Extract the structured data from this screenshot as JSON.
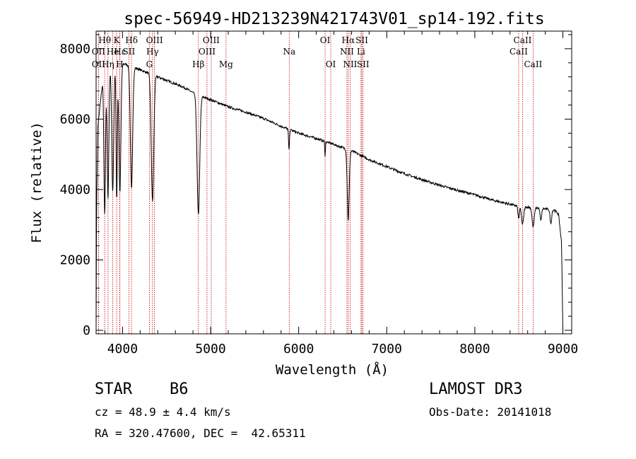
{
  "chart_data": {
    "type": "line",
    "title": "spec-56949-HD213239N421743V01_sp14-192.fits",
    "xlabel": "Wavelength (Å)",
    "ylabel": "Flux (relative)",
    "xlim": [
      3700,
      9100
    ],
    "ylim": [
      -100,
      8500
    ],
    "xticks": [
      4000,
      5000,
      6000,
      7000,
      8000,
      9000
    ],
    "yticks": [
      0,
      2000,
      4000,
      6000,
      8000
    ],
    "series": [
      {
        "name": "spectrum",
        "continuum": [
          [
            3700,
            0
          ],
          [
            3705,
            3500
          ],
          [
            3720,
            5800
          ],
          [
            3780,
            7200
          ],
          [
            3850,
            7500
          ],
          [
            3950,
            7600
          ],
          [
            4050,
            7550
          ],
          [
            4150,
            7450
          ],
          [
            4250,
            7350
          ],
          [
            4400,
            7200
          ],
          [
            4550,
            7050
          ],
          [
            4700,
            6900
          ],
          [
            4800,
            6750
          ],
          [
            4900,
            6650
          ],
          [
            5000,
            6550
          ],
          [
            5200,
            6350
          ],
          [
            5400,
            6200
          ],
          [
            5600,
            6020
          ],
          [
            5800,
            5800
          ],
          [
            6000,
            5600
          ],
          [
            6200,
            5450
          ],
          [
            6400,
            5280
          ],
          [
            6600,
            5100
          ],
          [
            6800,
            4850
          ],
          [
            7000,
            4650
          ],
          [
            7200,
            4450
          ],
          [
            7400,
            4280
          ],
          [
            7600,
            4120
          ],
          [
            7800,
            3980
          ],
          [
            8000,
            3850
          ],
          [
            8200,
            3700
          ],
          [
            8400,
            3580
          ],
          [
            8500,
            3520
          ],
          [
            8700,
            3480
          ],
          [
            8900,
            3420
          ],
          [
            8950,
            3300
          ],
          [
            8985,
            2500
          ],
          [
            9000,
            0
          ]
        ],
        "absorption": [
          [
            3797,
            4000,
            9
          ],
          [
            3835,
            3700,
            10
          ],
          [
            3889,
            3600,
            11
          ],
          [
            3934,
            3900,
            7
          ],
          [
            3970,
            3700,
            11
          ],
          [
            4102,
            3500,
            13
          ],
          [
            4340,
            3600,
            14
          ],
          [
            4861,
            3400,
            15
          ],
          [
            5890,
            600,
            5
          ],
          [
            6300,
            400,
            4
          ],
          [
            6563,
            2000,
            11
          ],
          [
            8498,
            350,
            8
          ],
          [
            8542,
            500,
            12
          ],
          [
            8662,
            550,
            12
          ],
          [
            8750,
            350,
            9
          ],
          [
            8863,
            400,
            9
          ]
        ]
      }
    ],
    "line_markers": [
      {
        "name": "Hθ",
        "wave": 3798,
        "row": 0
      },
      {
        "name": "OII",
        "wave": 3727,
        "row": 1
      },
      {
        "name": "He",
        "wave": 3889,
        "row": 1
      },
      {
        "name": "K",
        "wave": 3934,
        "row": 0
      },
      {
        "name": "Hε",
        "wave": 3970,
        "row": 1
      },
      {
        "name": "SII",
        "wave": 4072,
        "row": 1
      },
      {
        "name": "Hδ",
        "wave": 4102,
        "row": 0
      },
      {
        "name": "OII",
        "wave": 3727,
        "row": 2
      },
      {
        "name": "Hη",
        "wave": 3835,
        "row": 2
      },
      {
        "name": "H",
        "wave": 3968,
        "row": 2
      },
      {
        "name": "OIII",
        "wave": 4363,
        "row": 0
      },
      {
        "name": "Hγ",
        "wave": 4340,
        "row": 1
      },
      {
        "name": "G",
        "wave": 4305,
        "row": 2
      },
      {
        "name": "OIII",
        "wave": 5007,
        "row": 0
      },
      {
        "name": "OIII",
        "wave": 4959,
        "row": 1
      },
      {
        "name": "Hβ",
        "wave": 4861,
        "row": 2
      },
      {
        "name": "Mg",
        "wave": 5175,
        "row": 2
      },
      {
        "name": "Na",
        "wave": 5893,
        "row": 1
      },
      {
        "name": "OI",
        "wave": 6300,
        "row": 0
      },
      {
        "name": "OI",
        "wave": 6364,
        "row": 2
      },
      {
        "name": "Hα",
        "wave": 6563,
        "row": 0
      },
      {
        "name": "NII",
        "wave": 6548,
        "row": 1
      },
      {
        "name": "NII",
        "wave": 6584,
        "row": 2
      },
      {
        "name": "SII",
        "wave": 6717,
        "row": 0
      },
      {
        "name": "Li",
        "wave": 6708,
        "row": 1
      },
      {
        "name": "SII",
        "wave": 6731,
        "row": 2
      },
      {
        "name": "CaII",
        "wave": 8542,
        "row": 0
      },
      {
        "name": "CaII",
        "wave": 8498,
        "row": 1
      },
      {
        "name": "CaII",
        "wave": 8662,
        "row": 2
      }
    ],
    "marker_color": "#cc0000",
    "line_color": "#000000"
  },
  "info": {
    "object_class": "STAR",
    "subclass": "B6",
    "survey": "LAMOST DR3",
    "redshift": "cz = 48.9 ± 4.4 km/s",
    "obs_date": "Obs-Date: 20141018",
    "coords": "RA = 320.47600, DEC =  42.65311"
  }
}
